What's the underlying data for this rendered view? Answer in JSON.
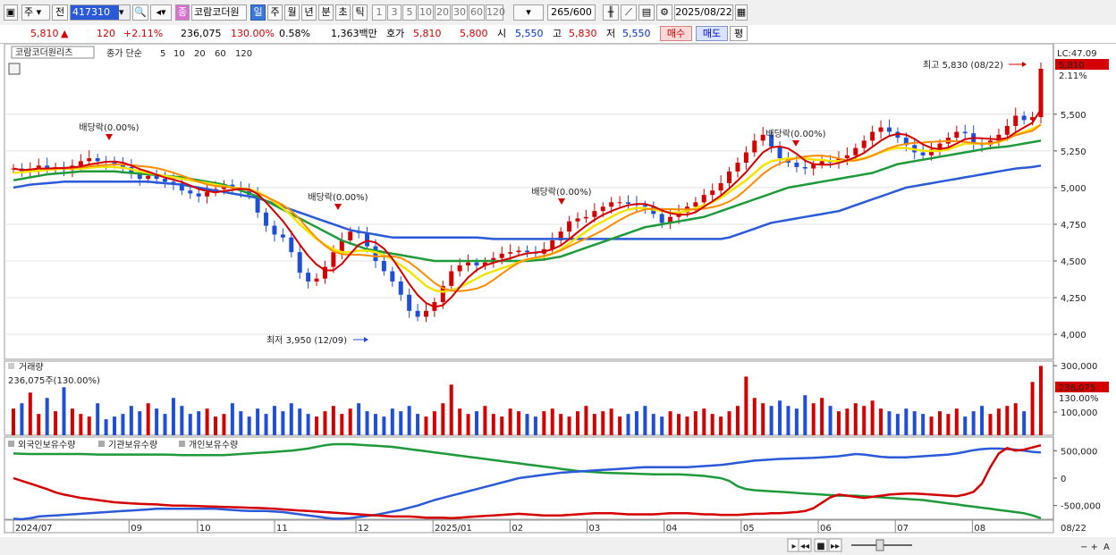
{
  "toolbar": {
    "period_type": "주",
    "prefix_label": "전",
    "stock_code": "417310",
    "stock_name": "코람코더원리",
    "timeframes": [
      "일",
      "주",
      "월",
      "년",
      "분",
      "초",
      "틱"
    ],
    "active_timeframe": "일",
    "intervals": [
      "1",
      "3",
      "5",
      "10",
      "20",
      "30",
      "60",
      "120"
    ],
    "count": "265",
    "count_max": "/600",
    "date": "2025/08/22"
  },
  "quote": {
    "price": "5,810",
    "arrow": "▲",
    "change": "120",
    "change_pct": "+2.11%",
    "volume": "236,075",
    "volume_ratio": "130.00%",
    "turnover": "0.58%",
    "amount": "1,363백만",
    "ask_label": "호가",
    "ask1": "5,810",
    "ask2": "5,800",
    "open_label": "시",
    "open": "5,550",
    "high_label": "고",
    "high": "5,830",
    "low_label": "저",
    "low": "5,550",
    "buy_label": "매수",
    "sell_label": "매도",
    "extra_label": "평"
  },
  "colors": {
    "up": "#d40000",
    "down": "#1f4fd8",
    "ma5": "#d40000",
    "ma10": "#ff8c00",
    "ma20": "#f5e400",
    "ma60": "#1f9a3a",
    "ma120": "#2a5ad8"
  },
  "chart_data": [
    {
      "type": "line",
      "panel": "price",
      "legend": {
        "name": "코람코더원리츠",
        "indicator": "종가 단순",
        "periods": [
          "5",
          "10",
          "20",
          "60",
          "120"
        ]
      },
      "x_labels": [
        "2024/07",
        "09",
        "10",
        "11",
        "12",
        "2025/01",
        "02",
        "03",
        "04",
        "05",
        "06",
        "07",
        "08",
        "08/22"
      ],
      "y_ticks": [
        "5,500",
        "5,250",
        "5,000",
        "4,750",
        "4,500",
        "4,250",
        "4,000"
      ],
      "y_tick_values": [
        5500,
        5250,
        5000,
        4750,
        4500,
        4250,
        4000
      ],
      "ylim": [
        3830,
        5980
      ],
      "close": [
        5130,
        5110,
        5130,
        5150,
        5130,
        5140,
        5120,
        5150,
        5180,
        5200,
        5180,
        5170,
        5160,
        5140,
        5100,
        5060,
        5080,
        5060,
        5040,
        5030,
        4980,
        4960,
        4940,
        4970,
        4990,
        5020,
        5000,
        4980,
        4950,
        4830,
        4740,
        4680,
        4660,
        4560,
        4420,
        4360,
        4380,
        4460,
        4560,
        4640,
        4700,
        4690,
        4600,
        4500,
        4430,
        4360,
        4270,
        4160,
        4120,
        4160,
        4220,
        4330,
        4430,
        4470,
        4490,
        4470,
        4490,
        4520,
        4550,
        4560,
        4570,
        4560,
        4550,
        4580,
        4640,
        4700,
        4770,
        4790,
        4800,
        4840,
        4870,
        4900,
        4900,
        4890,
        4880,
        4870,
        4820,
        4760,
        4800,
        4830,
        4870,
        4900,
        4950,
        4980,
        5030,
        5110,
        5170,
        5240,
        5320,
        5360,
        5280,
        5200,
        5170,
        5140,
        5130,
        5160,
        5180,
        5170,
        5200,
        5220,
        5270,
        5320,
        5380,
        5410,
        5380,
        5340,
        5290,
        5240,
        5220,
        5260,
        5300,
        5340,
        5380,
        5370,
        5300,
        5290,
        5320,
        5360,
        5420,
        5490,
        5460,
        5480,
        5810
      ],
      "ma20": [
        5100,
        5105,
        5110,
        5115,
        5120,
        5125,
        5130,
        5130,
        5130,
        5135,
        5140,
        5140,
        5140,
        5135,
        5125,
        5110,
        5100,
        5090,
        5080,
        5070,
        5060,
        5050,
        5040,
        5030,
        5020,
        5010,
        5000,
        4995,
        4990,
        4970,
        4940,
        4900,
        4860,
        4810,
        4750,
        4700,
        4650,
        4610,
        4580,
        4560,
        4560,
        4570,
        4570,
        4560,
        4540,
        4510,
        4470,
        4430,
        4380,
        4330,
        4300,
        4290,
        4300,
        4320,
        4350,
        4380,
        4410,
        4430,
        4450,
        4470,
        4490,
        4510,
        4520,
        4530,
        4550,
        4580,
        4620,
        4660,
        4700,
        4740,
        4770,
        4800,
        4830,
        4850,
        4860,
        4860,
        4850,
        4840,
        4830,
        4830,
        4840,
        4860,
        4880,
        4900,
        4930,
        4970,
        5010,
        5050,
        5100,
        5150,
        5180,
        5190,
        5200,
        5200,
        5200,
        5190,
        5190,
        5180,
        5180,
        5180,
        5190,
        5200,
        5220,
        5240,
        5260,
        5270,
        5270,
        5260,
        5250,
        5250,
        5250,
        5260,
        5280,
        5300,
        5300,
        5300,
        5300,
        5310,
        5330,
        5360,
        5380,
        5400,
        5430
      ],
      "ma60": [
        5050,
        5060,
        5070,
        5080,
        5090,
        5095,
        5100,
        5105,
        5110,
        5110,
        5110,
        5110,
        5110,
        5105,
        5100,
        5095,
        5090,
        5085,
        5080,
        5075,
        5070,
        5060,
        5050,
        5040,
        5030,
        5020,
        5000,
        4980,
        4960,
        4940,
        4910,
        4880,
        4850,
        4820,
        4790,
        4760,
        4730,
        4700,
        4670,
        4640,
        4620,
        4600,
        4580,
        4570,
        4560,
        4550,
        4540,
        4530,
        4520,
        4510,
        4500,
        4500,
        4500,
        4500,
        4500,
        4500,
        4500,
        4500,
        4500,
        4500,
        4500,
        4500,
        4505,
        4510,
        4520,
        4530,
        4550,
        4570,
        4590,
        4610,
        4630,
        4650,
        4670,
        4690,
        4710,
        4730,
        4740,
        4750,
        4760,
        4770,
        4780,
        4790,
        4800,
        4820,
        4840,
        4860,
        4880,
        4900,
        4920,
        4940,
        4960,
        4980,
        5000,
        5010,
        5020,
        5030,
        5040,
        5050,
        5060,
        5070,
        5080,
        5090,
        5100,
        5120,
        5140,
        5160,
        5170,
        5180,
        5190,
        5200,
        5210,
        5220,
        5230,
        5240,
        5250,
        5260,
        5270,
        5275,
        5280,
        5290,
        5300,
        5310,
        5320
      ],
      "ma120": [
        5000,
        5010,
        5020,
        5025,
        5030,
        5035,
        5040,
        5040,
        5040,
        5040,
        5040,
        5040,
        5040,
        5040,
        5040,
        5040,
        5040,
        5035,
        5030,
        5025,
        5020,
        5010,
        5000,
        4990,
        4980,
        4970,
        4960,
        4950,
        4940,
        4930,
        4910,
        4890,
        4870,
        4850,
        4830,
        4810,
        4790,
        4770,
        4750,
        4730,
        4710,
        4700,
        4690,
        4680,
        4670,
        4660,
        4660,
        4660,
        4660,
        4660,
        4660,
        4660,
        4660,
        4660,
        4660,
        4660,
        4655,
        4650,
        4650,
        4650,
        4650,
        4650,
        4650,
        4650,
        4650,
        4650,
        4650,
        4650,
        4650,
        4650,
        4650,
        4650,
        4650,
        4650,
        4650,
        4650,
        4650,
        4650,
        4650,
        4650,
        4650,
        4650,
        4650,
        4650,
        4650,
        4660,
        4680,
        4700,
        4720,
        4740,
        4760,
        4770,
        4780,
        4790,
        4800,
        4810,
        4820,
        4830,
        4840,
        4860,
        4880,
        4900,
        4920,
        4940,
        4960,
        4980,
        5000,
        5010,
        5020,
        5030,
        5040,
        5050,
        5060,
        5070,
        5080,
        5090,
        5100,
        5110,
        5120,
        5130,
        5135,
        5140,
        5150
      ],
      "annotations": [
        {
          "text": "배당락(0.00%)"
        },
        {
          "text": "배당락(0.00%)"
        },
        {
          "text": "배당락(0.00%)"
        },
        {
          "text": "배당락(0.00%)"
        }
      ],
      "high_label": "최고 5,830 (08/22)",
      "low_label": "최저 3,950 (12/09)",
      "right_labels": {
        "lc": "LC:47.09",
        "price": "5,810",
        "pct": "2.11%"
      }
    },
    {
      "type": "bar",
      "panel": "volume",
      "title": "거래량",
      "current": "236,075주(130.00%)",
      "y_ticks": [
        "300,000",
        "100,000"
      ],
      "y_tick_values": [
        300000,
        100000
      ],
      "right_labels": {
        "value": "236,075",
        "pct": "130.00%"
      },
      "values": [
        50,
        60,
        80,
        40,
        70,
        45,
        90,
        50,
        40,
        35,
        60,
        30,
        35,
        40,
        55,
        45,
        60,
        50,
        40,
        70,
        55,
        40,
        45,
        50,
        35,
        40,
        60,
        45,
        35,
        50,
        40,
        55,
        45,
        60,
        50,
        40,
        35,
        45,
        55,
        40,
        50,
        60,
        45,
        40,
        35,
        50,
        45,
        55,
        40,
        35,
        45,
        60,
        95,
        50,
        40,
        45,
        55,
        40,
        35,
        50,
        45,
        40,
        35,
        45,
        50,
        40,
        35,
        45,
        55,
        40,
        45,
        50,
        35,
        40,
        45,
        55,
        40,
        35,
        45,
        40,
        35,
        45,
        50,
        40,
        35,
        45,
        55,
        110,
        70,
        60,
        55,
        65,
        55,
        50,
        75,
        60,
        70,
        55,
        45,
        50,
        60,
        55,
        65,
        50,
        45,
        40,
        50,
        45,
        40,
        35,
        45,
        40,
        50,
        35,
        45,
        55,
        40,
        50,
        55,
        60,
        45,
        100,
        130
      ],
      "ylim": [
        0,
        320000
      ]
    },
    {
      "type": "line",
      "panel": "holdings",
      "legend": [
        "외국인보유수량",
        "기관보유수량",
        "개인보유수량"
      ],
      "y_ticks": [
        "500,000",
        "0",
        "-500,000"
      ],
      "y_tick_values": [
        500000,
        0,
        -500000
      ],
      "ylim": [
        -750000,
        750000
      ],
      "foreign": [
        0,
        -50000,
        -100000,
        -150000,
        -200000,
        -260000,
        -300000,
        -330000,
        -360000,
        -380000,
        -400000,
        -420000,
        -440000,
        -450000,
        -460000,
        -470000,
        -475000,
        -480000,
        -490000,
        -500000,
        -500000,
        -505000,
        -510000,
        -515000,
        -520000,
        -525000,
        -530000,
        -535000,
        -540000,
        -545000,
        -550000,
        -560000,
        -570000,
        -580000,
        -590000,
        -600000,
        -610000,
        -620000,
        -630000,
        -640000,
        -650000,
        -660000,
        -670000,
        -680000,
        -690000,
        -700000,
        -700000,
        -700000,
        -710000,
        -720000,
        -720000,
        -720000,
        -730000,
        -720000,
        -710000,
        -700000,
        -690000,
        -680000,
        -670000,
        -660000,
        -650000,
        -660000,
        -670000,
        -680000,
        -680000,
        -680000,
        -670000,
        -660000,
        -650000,
        -640000,
        -640000,
        -640000,
        -650000,
        -660000,
        -660000,
        -660000,
        -660000,
        -650000,
        -640000,
        -640000,
        -640000,
        -650000,
        -660000,
        -660000,
        -670000,
        -670000,
        -670000,
        -660000,
        -650000,
        -650000,
        -640000,
        -640000,
        -630000,
        -620000,
        -600000,
        -550000,
        -450000,
        -350000,
        -300000,
        -320000,
        -340000,
        -360000,
        -340000,
        -320000,
        -300000,
        -290000,
        -280000,
        -280000,
        -290000,
        -300000,
        -310000,
        -320000,
        -330000,
        -300000,
        -250000,
        -100000,
        200000,
        450000,
        550000,
        500000,
        520000,
        560000,
        600000
      ],
      "institution": [
        -740000,
        -750000,
        -730000,
        -700000,
        -690000,
        -680000,
        -670000,
        -660000,
        -650000,
        -640000,
        -630000,
        -620000,
        -610000,
        -600000,
        -590000,
        -580000,
        -570000,
        -560000,
        -560000,
        -560000,
        -560000,
        -560000,
        -560000,
        -560000,
        -560000,
        -570000,
        -580000,
        -590000,
        -600000,
        -600000,
        -600000,
        -610000,
        -620000,
        -640000,
        -660000,
        -680000,
        -700000,
        -720000,
        -740000,
        -740000,
        -730000,
        -710000,
        -690000,
        -670000,
        -640000,
        -610000,
        -580000,
        -540000,
        -500000,
        -450000,
        -400000,
        -360000,
        -320000,
        -280000,
        -240000,
        -200000,
        -160000,
        -120000,
        -80000,
        -40000,
        0,
        20000,
        40000,
        60000,
        80000,
        100000,
        110000,
        120000,
        130000,
        140000,
        150000,
        160000,
        170000,
        180000,
        190000,
        200000,
        200000,
        200000,
        200000,
        200000,
        200000,
        210000,
        220000,
        230000,
        240000,
        260000,
        280000,
        300000,
        320000,
        330000,
        340000,
        350000,
        355000,
        360000,
        365000,
        370000,
        380000,
        390000,
        400000,
        420000,
        440000,
        430000,
        410000,
        390000,
        380000,
        380000,
        380000,
        390000,
        400000,
        410000,
        420000,
        430000,
        450000,
        480000,
        510000,
        530000,
        540000,
        540000,
        530000,
        520000,
        500000,
        480000,
        470000
      ],
      "individual": [
        450000,
        445000,
        440000,
        440000,
        440000,
        440000,
        440000,
        440000,
        440000,
        435000,
        430000,
        430000,
        430000,
        430000,
        430000,
        430000,
        430000,
        430000,
        430000,
        425000,
        420000,
        420000,
        420000,
        420000,
        420000,
        420000,
        430000,
        440000,
        450000,
        460000,
        470000,
        480000,
        490000,
        500000,
        520000,
        540000,
        570000,
        600000,
        620000,
        620000,
        620000,
        610000,
        600000,
        590000,
        580000,
        570000,
        550000,
        530000,
        510000,
        490000,
        470000,
        450000,
        430000,
        410000,
        390000,
        370000,
        350000,
        330000,
        310000,
        290000,
        270000,
        250000,
        230000,
        210000,
        190000,
        170000,
        150000,
        130000,
        120000,
        110000,
        100000,
        95000,
        90000,
        85000,
        80000,
        75000,
        70000,
        70000,
        70000,
        70000,
        60000,
        50000,
        40000,
        20000,
        0,
        -50000,
        -150000,
        -200000,
        -220000,
        -230000,
        -240000,
        -250000,
        -260000,
        -270000,
        -280000,
        -290000,
        -300000,
        -310000,
        -320000,
        -320000,
        -320000,
        -330000,
        -340000,
        -350000,
        -360000,
        -370000,
        -380000,
        -390000,
        -400000,
        -420000,
        -440000,
        -460000,
        -480000,
        -500000,
        -520000,
        -540000,
        -560000,
        -580000,
        -600000,
        -620000,
        -640000,
        -680000,
        -730000
      ]
    }
  ]
}
